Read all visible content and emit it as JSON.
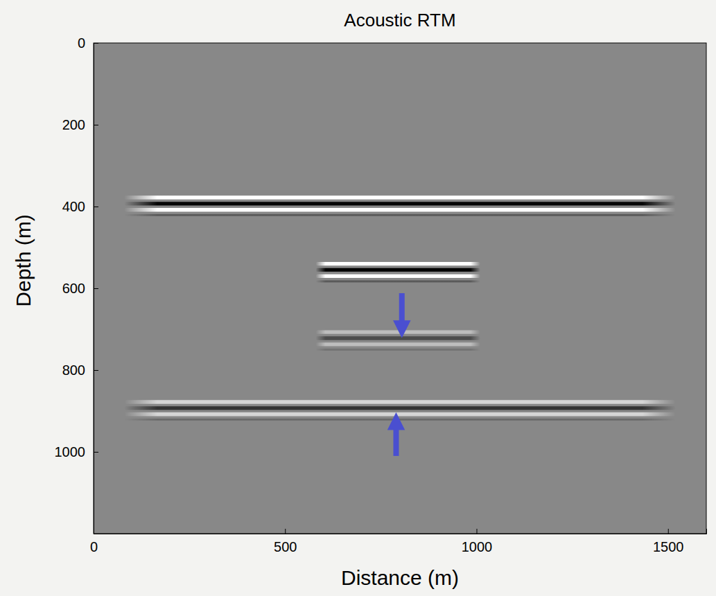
{
  "chart_data": {
    "type": "seismic_image",
    "title": "Acoustic RTM",
    "x_label": "Distance (m)",
    "y_label": "Depth (m)",
    "xlim": [
      0,
      1600
    ],
    "ylim": [
      0,
      1200
    ],
    "xticks": [
      0,
      500,
      1000,
      1500
    ],
    "yticks": [
      0,
      200,
      400,
      600,
      800,
      1000
    ],
    "reflectors": [
      {
        "depth": 393,
        "x_start": 80,
        "x_end": 1520,
        "amplitude": 1.0
      },
      {
        "depth": 555,
        "x_start": 580,
        "x_end": 1010,
        "amplitude": 1.0
      },
      {
        "depth": 722,
        "x_start": 580,
        "x_end": 1010,
        "amplitude": 0.45
      },
      {
        "depth": 893,
        "x_start": 80,
        "x_end": 1520,
        "amplitude": 0.65
      }
    ],
    "arrows": [
      {
        "x": 805,
        "from": 612,
        "to": 700
      },
      {
        "x": 790,
        "from": 1010,
        "to": 925
      }
    ],
    "color": "#4a4fd0"
  }
}
